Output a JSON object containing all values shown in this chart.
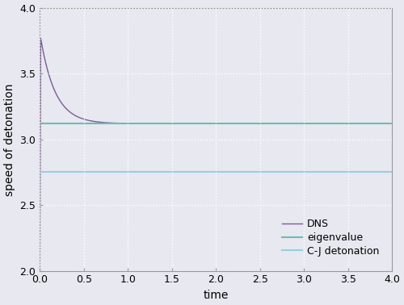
{
  "title": "",
  "xlabel": "time",
  "ylabel": "speed of detonation",
  "xlim": [
    0,
    4
  ],
  "ylim": [
    2,
    4
  ],
  "yticks": [
    2,
    2.5,
    3,
    3.5,
    4
  ],
  "xticks": [
    0,
    0.5,
    1,
    1.5,
    2,
    2.5,
    3,
    3.5,
    4
  ],
  "eigenvalue_y": 3.12,
  "cj_y": 2.75,
  "dns_peak": 3.77,
  "eigenvalue_color": "#6dbdb0",
  "cj_color": "#96d0e0",
  "dns_color": "#7b5c9a",
  "background_color": "#e8e8f0",
  "plot_bg_color": "#e8e8f0",
  "grid_color": "#ffffff",
  "spine_color": "#999999",
  "legend_labels": [
    "DNS",
    "eigenvalue",
    "C-J detonation"
  ],
  "legend_fontsize": 9,
  "axis_fontsize": 10,
  "tick_fontsize": 9,
  "dns_decay_rate": 6.0,
  "dns_rise_x": 0.01
}
